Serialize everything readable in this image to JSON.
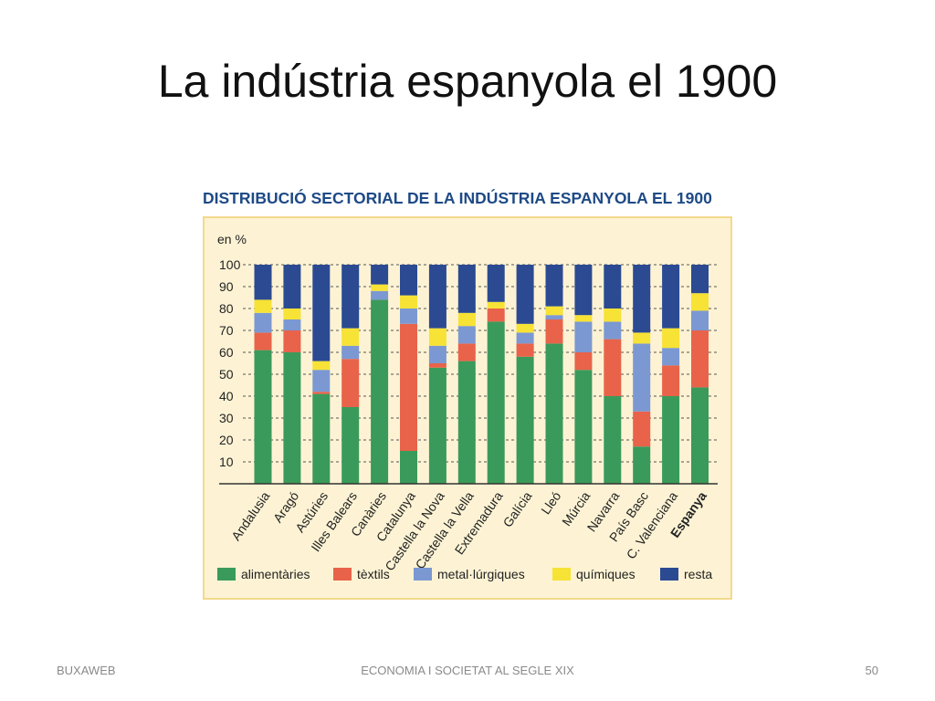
{
  "slide": {
    "title": "La indústria espanyola el 1900",
    "footer_left": "BUXAWEB",
    "footer_center": "ECONOMIA I SOCIETAT AL SEGLE XIX",
    "page_number": "50"
  },
  "colors": {
    "alimentaries": "#3a9a5b",
    "textils": "#e8634a",
    "metallurgiques": "#7b98d2",
    "quimiques": "#f7e236",
    "resta": "#2b4a92",
    "figure_title": "#1e4a86",
    "panel_background": "#fdf3d4"
  },
  "chart_data": {
    "type": "bar",
    "stacked": true,
    "title": "DISTRIBUCIÓ SECTORIAL DE LA INDÚSTRIA ESPANYOLA EL 1900",
    "ylabel": "en %",
    "ylim": [
      0,
      100
    ],
    "yticks": [
      10,
      20,
      30,
      40,
      50,
      60,
      70,
      80,
      90,
      100
    ],
    "grid": true,
    "legend_position": "bottom",
    "categories": [
      "Andalusia",
      "Aragó",
      "Astúries",
      "Illes Balears",
      "Canàries",
      "Catalunya",
      "Castella la Nova",
      "Castella la Vella",
      "Extremadura",
      "Galícia",
      "Lleó",
      "Múrcia",
      "Navarra",
      "País Basc",
      "C. Valenciana",
      "Espanya"
    ],
    "bold_categories": [
      "Espanya"
    ],
    "series": [
      {
        "name": "alimentàries",
        "values": [
          61,
          60,
          41,
          35,
          84,
          15,
          53,
          56,
          74,
          58,
          64,
          52,
          40,
          17,
          40,
          44
        ]
      },
      {
        "name": "tèxtils",
        "values": [
          8,
          10,
          1,
          22,
          0,
          58,
          2,
          8,
          6,
          6,
          11,
          8,
          26,
          16,
          14,
          26
        ]
      },
      {
        "name": "metal·lúrgiques",
        "values": [
          9,
          5,
          10,
          6,
          4,
          7,
          8,
          8,
          0,
          5,
          2,
          14,
          8,
          31,
          8,
          9
        ]
      },
      {
        "name": "químiques",
        "values": [
          6,
          5,
          4,
          8,
          3,
          6,
          8,
          6,
          3,
          4,
          4,
          3,
          6,
          5,
          9,
          8
        ]
      },
      {
        "name": "resta",
        "values": [
          16,
          20,
          44,
          29,
          9,
          14,
          29,
          22,
          17,
          27,
          19,
          23,
          20,
          31,
          29,
          13
        ]
      }
    ]
  }
}
